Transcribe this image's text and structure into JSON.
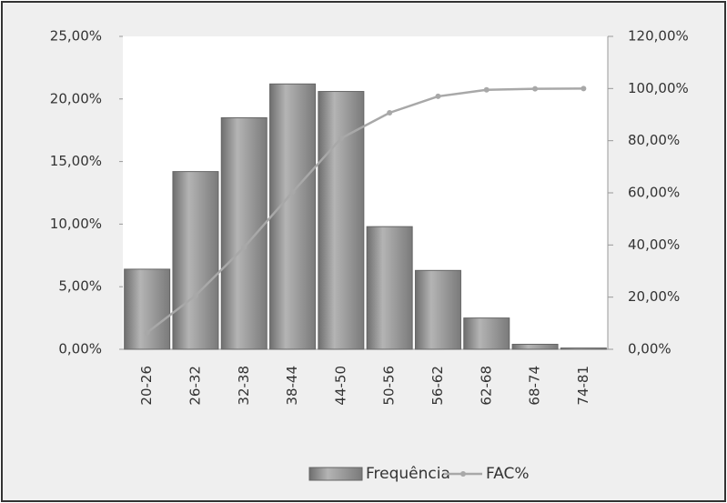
{
  "chart_data": {
    "type": "bar",
    "categories": [
      "20-26",
      "26-32",
      "32-38",
      "38-44",
      "44-50",
      "50-56",
      "56-62",
      "62-68",
      "68-74",
      "74-81"
    ],
    "series": [
      {
        "name": "Frequência",
        "type": "bar",
        "color": "#8c8c8c",
        "values": [
          6.4,
          14.2,
          18.5,
          21.2,
          20.6,
          9.8,
          6.3,
          2.5,
          0.4,
          0.1
        ]
      },
      {
        "name": "FAC%",
        "type": "line",
        "axis": "y2",
        "color": "#a8a8a8",
        "values": [
          6.4,
          20.6,
          39.1,
          60.3,
          80.9,
          90.7,
          97.0,
          99.5,
          99.9,
          100
        ]
      }
    ],
    "ylim": [
      0,
      25
    ],
    "yticks": [
      {
        "value": 0,
        "label": "0,00%"
      },
      {
        "value": 5,
        "label": "5,00%"
      },
      {
        "value": 10,
        "label": "10,00%"
      },
      {
        "value": 15,
        "label": "15,00%"
      },
      {
        "value": 20,
        "label": "20,00%"
      },
      {
        "value": 25,
        "label": "25,00%"
      }
    ],
    "y2lim": [
      0,
      120
    ],
    "y2ticks": [
      {
        "value": 0,
        "label": "0,00%"
      },
      {
        "value": 20,
        "label": "20,00%"
      },
      {
        "value": 40,
        "label": "40,00%"
      },
      {
        "value": 60,
        "label": "60,00%"
      },
      {
        "value": 80,
        "label": "80,00%"
      },
      {
        "value": 100,
        "label": "100,00%"
      },
      {
        "value": 120,
        "label": "120,00%"
      }
    ],
    "legend": "bottom"
  }
}
